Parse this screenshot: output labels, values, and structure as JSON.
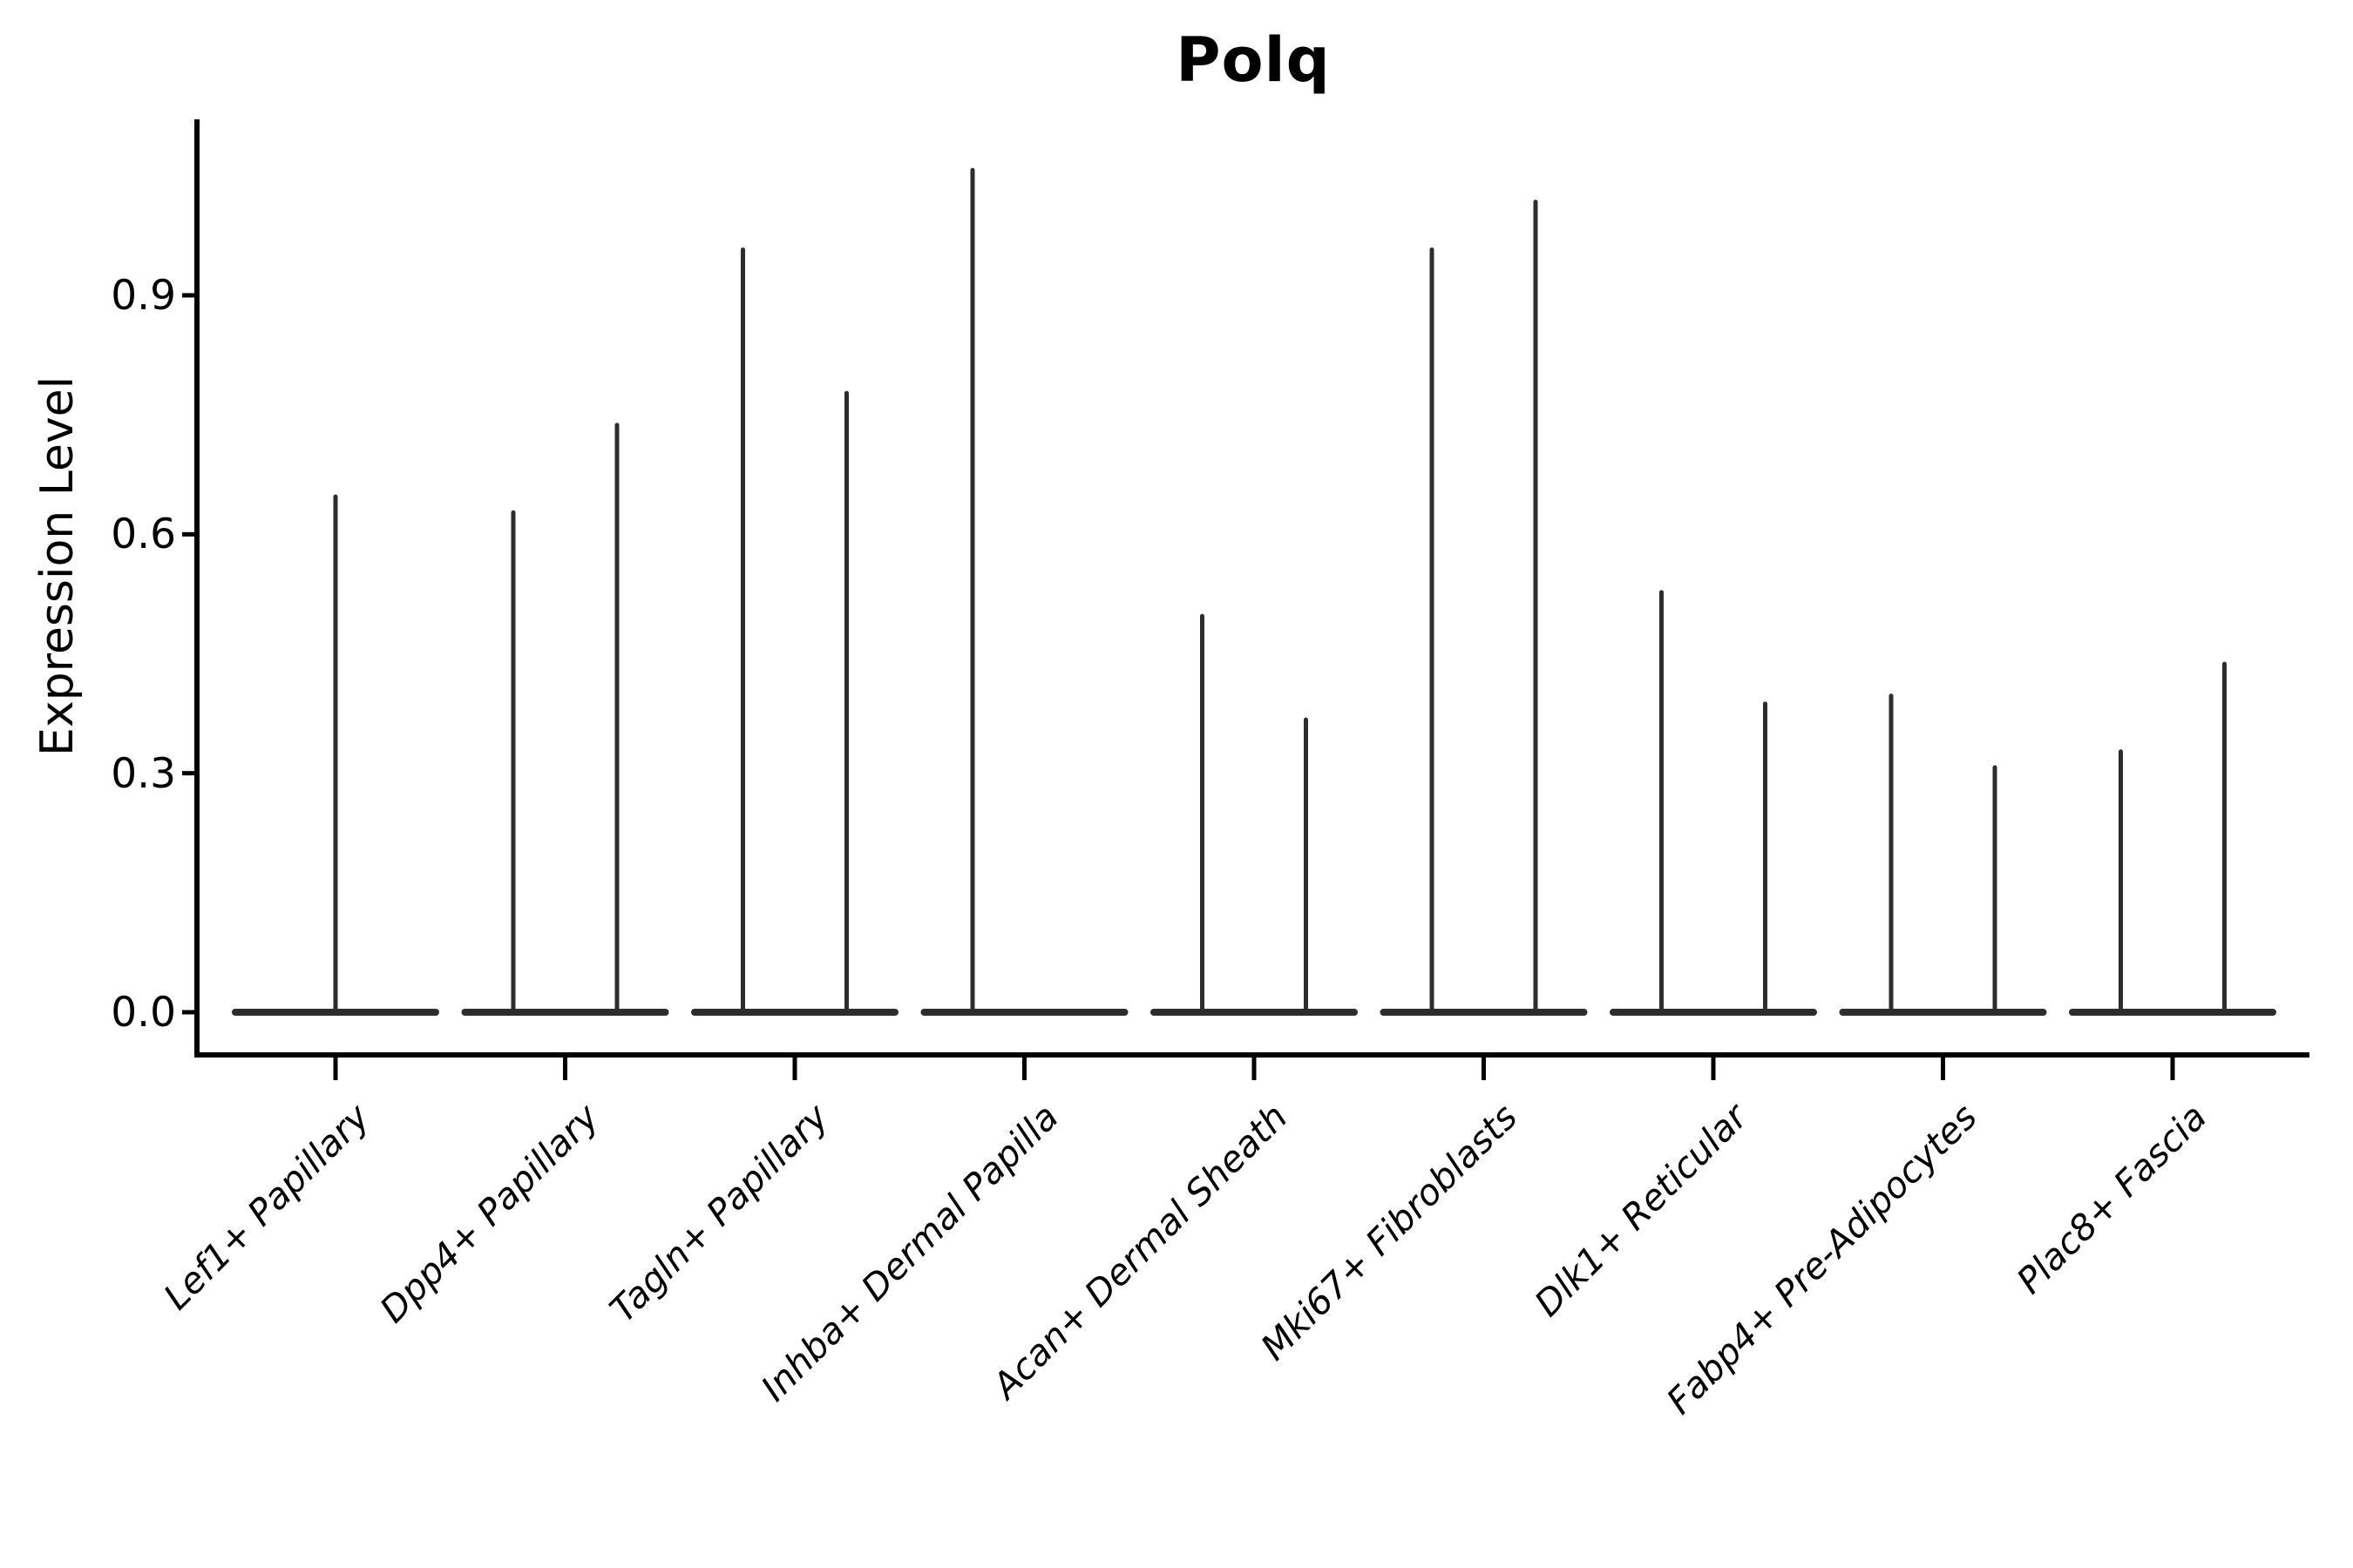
{
  "title": "Polq",
  "axes": {
    "y": {
      "label": "Expression Level",
      "tick_labels": [
        "0.9",
        "0.6",
        "0.3",
        "0.0"
      ],
      "tick_values": [
        0.9,
        0.6,
        0.3,
        0.0
      ]
    },
    "x": {
      "tick_labels": [
        "Lef1+ Papillary",
        "Dpp4+ Papillary",
        "Tagln+ Papillary",
        "Inhba+ Dermal Papilla",
        "Acan+ Dermal Sheath",
        "Mki67+ Fibroblasts",
        "Dlk1+ Reticular",
        "Fabp4+ Pre-Adipocytes",
        "Plac8+ Fascia"
      ]
    }
  },
  "chart_data": {
    "type": "violin",
    "title": "Polq",
    "xlabel": "",
    "ylabel": "Expression Level",
    "ylim": [
      0,
      1.12
    ],
    "yticks": [
      0.0,
      0.3,
      0.6,
      0.9
    ],
    "grid": false,
    "legend": "none",
    "categories": [
      "Lef1+ Papillary",
      "Dpp4+ Papillary",
      "Tagln+ Papillary",
      "Inhba+ Dermal Papilla",
      "Acan+ Dermal Sheath",
      "Mki67+ Fibroblasts",
      "Dlk1+ Reticular",
      "Fabp4+ Pre-Adipocytes",
      "Plac8+ Fascia"
    ],
    "violins": [
      {
        "category": "Lef1+ Papillary",
        "spikes": [
          {
            "position": "center",
            "max": 0.65
          }
        ]
      },
      {
        "category": "Dpp4+ Papillary",
        "spikes": [
          {
            "position": "left",
            "max": 0.63
          },
          {
            "position": "right",
            "max": 0.74
          }
        ]
      },
      {
        "category": "Tagln+ Papillary",
        "spikes": [
          {
            "position": "left",
            "max": 0.96
          },
          {
            "position": "right",
            "max": 0.78
          }
        ]
      },
      {
        "category": "Inhba+ Dermal Papilla",
        "spikes": [
          {
            "position": "left",
            "max": 1.06
          },
          {
            "position": "right",
            "max": 0.0
          }
        ]
      },
      {
        "category": "Acan+ Dermal Sheath",
        "spikes": [
          {
            "position": "left",
            "max": 0.5
          },
          {
            "position": "right",
            "max": 0.37
          }
        ]
      },
      {
        "category": "Mki67+ Fibroblasts",
        "spikes": [
          {
            "position": "left",
            "max": 0.96
          },
          {
            "position": "right",
            "max": 1.02
          }
        ]
      },
      {
        "category": "Dlk1+ Reticular",
        "spikes": [
          {
            "position": "left",
            "max": 0.53
          },
          {
            "position": "right",
            "max": 0.39
          }
        ]
      },
      {
        "category": "Fabp4+ Pre-Adipocytes",
        "spikes": [
          {
            "position": "left",
            "max": 0.4
          },
          {
            "position": "right",
            "max": 0.31
          }
        ]
      },
      {
        "category": "Plac8+ Fascia",
        "spikes": [
          {
            "position": "left",
            "max": 0.33
          },
          {
            "position": "right",
            "max": 0.44
          }
        ]
      }
    ],
    "colors": {
      "violin": "#2d2d2d",
      "axis": "#000000",
      "text": "#000000",
      "background": "#ffffff"
    }
  }
}
